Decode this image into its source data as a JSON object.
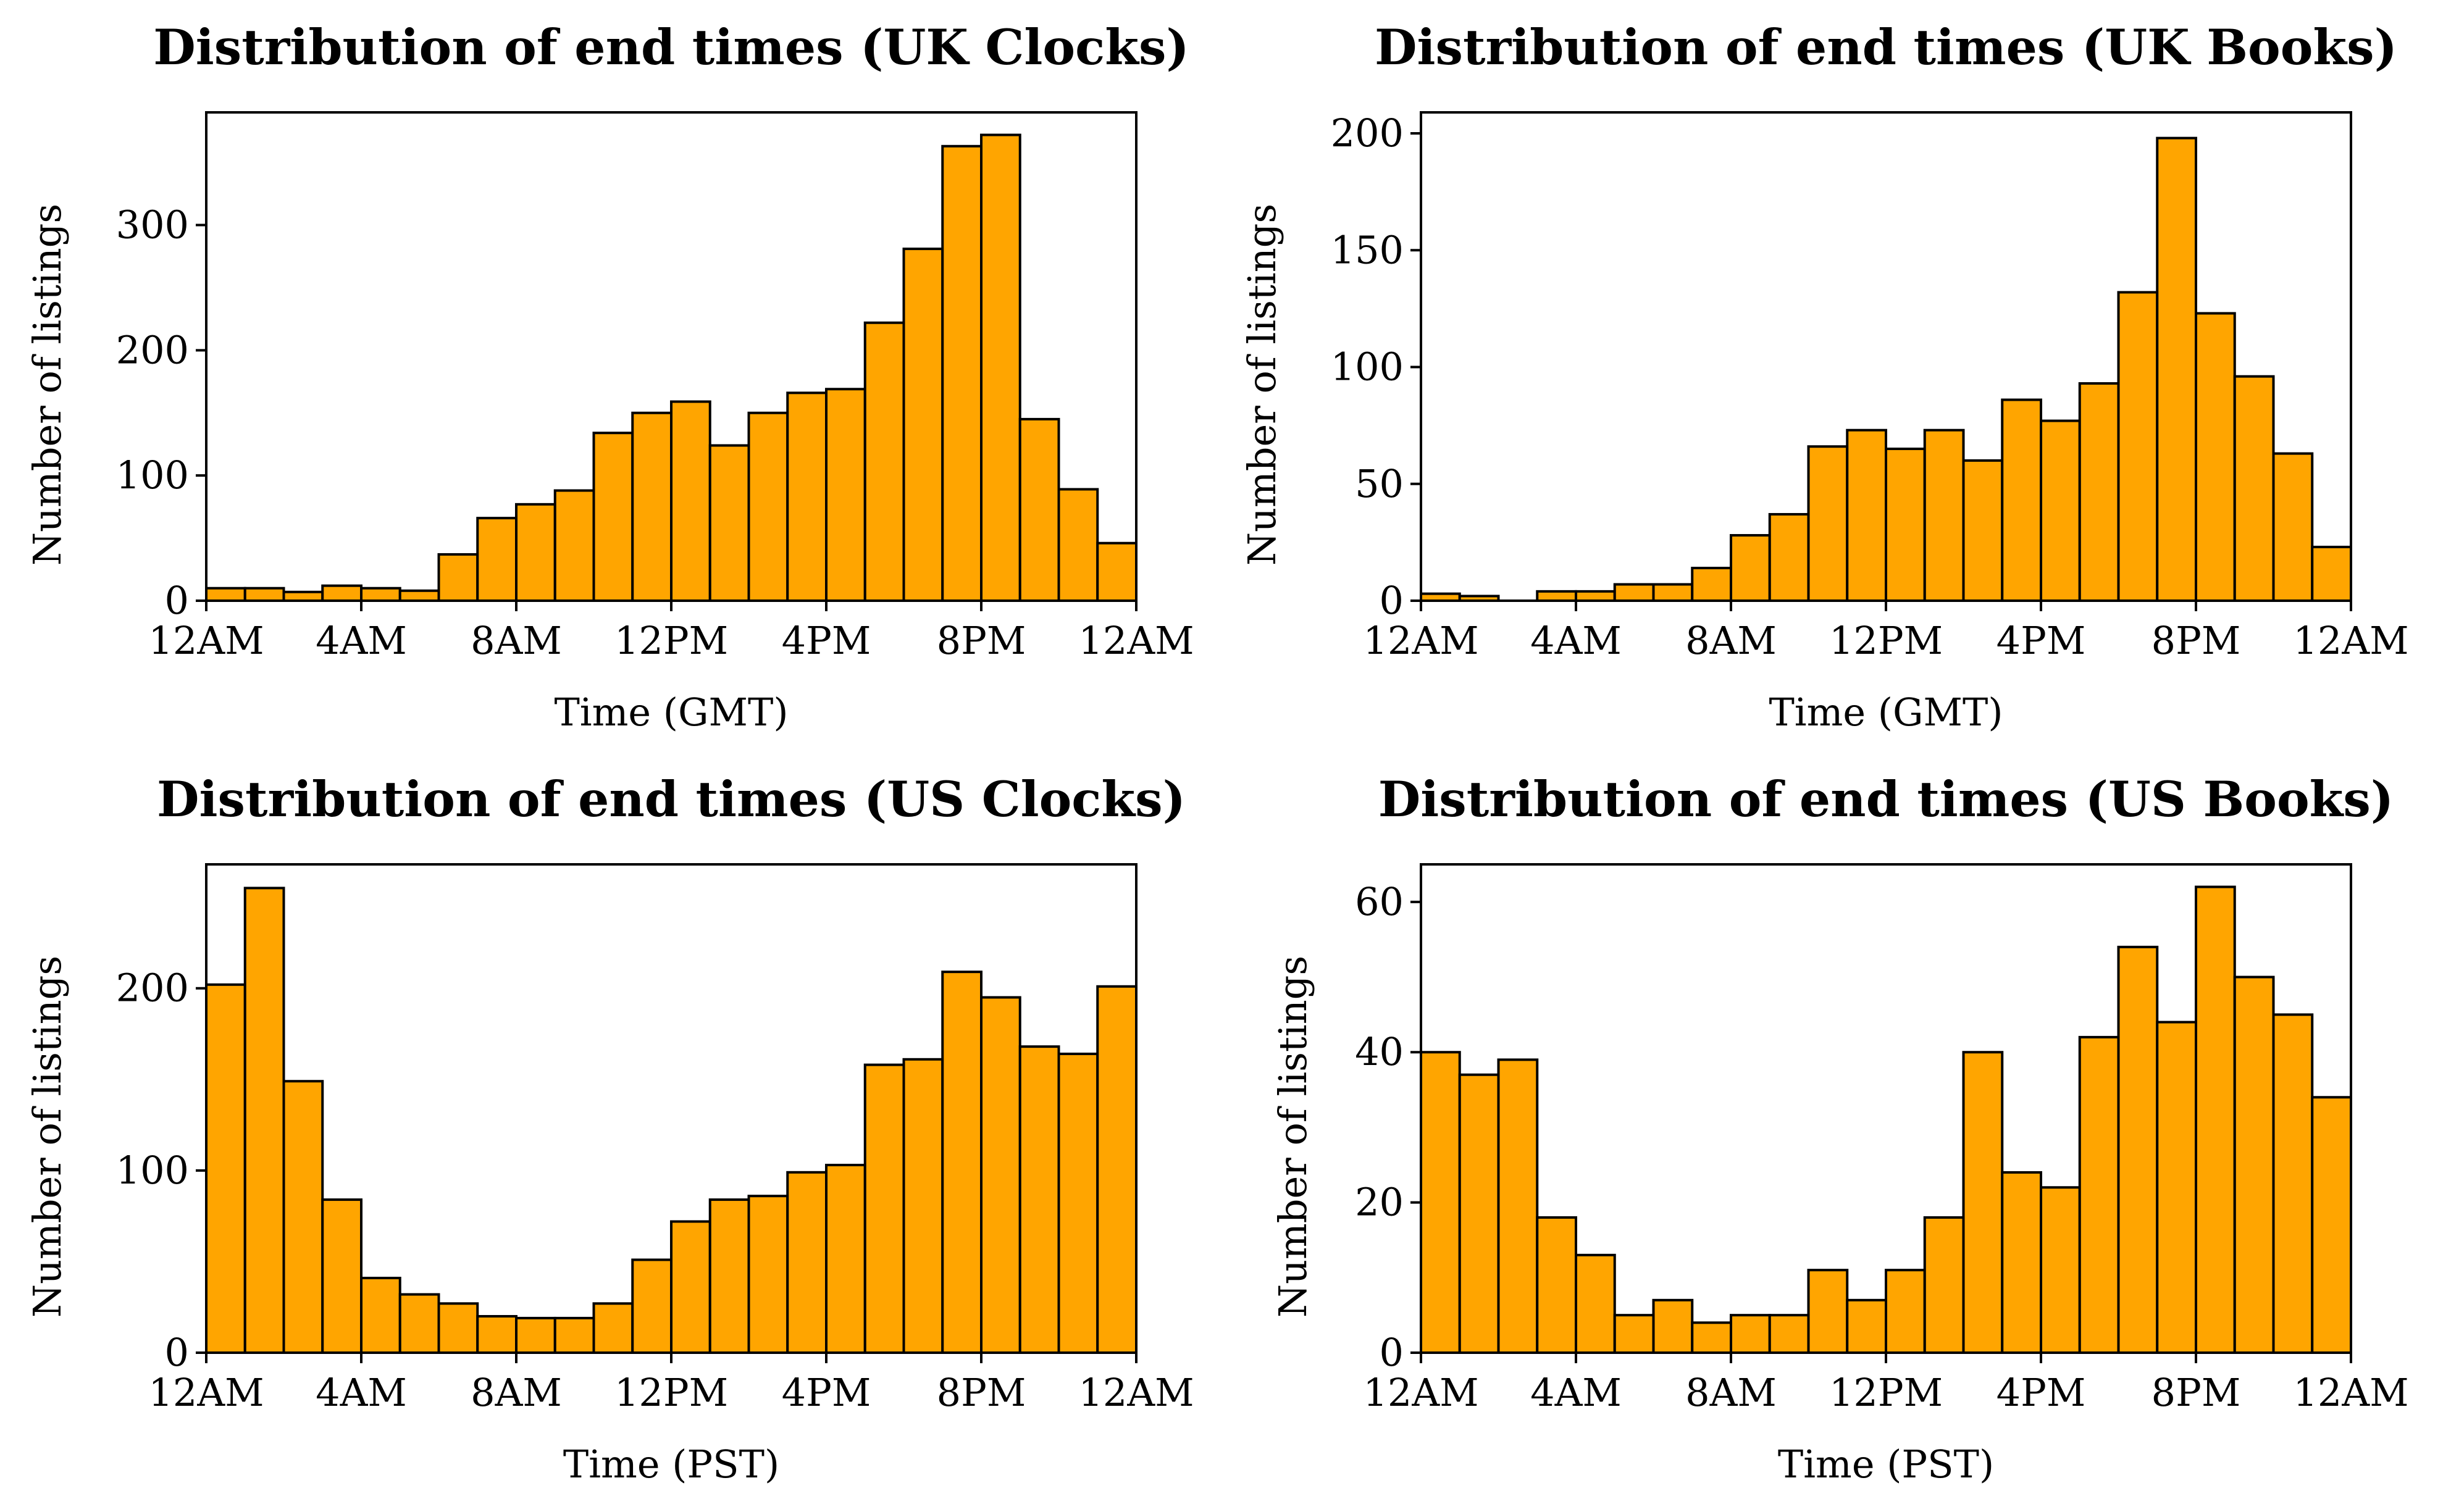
{
  "style": {
    "bar_color": "#FFA500",
    "edge_color": "#000000",
    "background": "#FFFFFF"
  },
  "chart_data": [
    {
      "type": "bar",
      "title": "Distribution of end times (UK Clocks)",
      "xlabel": "Time (GMT)",
      "ylabel": "Number of listings",
      "x_range": [
        0,
        24
      ],
      "x_ticks": [
        0,
        4,
        8,
        12,
        16,
        20,
        24
      ],
      "x_tick_labels": [
        "12AM",
        "4AM",
        "8AM",
        "12PM",
        "4PM",
        "8PM",
        "12AM"
      ],
      "ylim": [
        0,
        390
      ],
      "y_ticks": [
        0,
        100,
        200,
        300
      ],
      "grid": false,
      "legend": "none",
      "bin_width": 1,
      "values": [
        10,
        10,
        7,
        12,
        10,
        8,
        37,
        66,
        77,
        88,
        134,
        150,
        159,
        124,
        150,
        166,
        169,
        222,
        281,
        363,
        372,
        145,
        89,
        46
      ]
    },
    {
      "type": "bar",
      "title": "Distribution of end times (UK Books)",
      "xlabel": "Time (GMT)",
      "ylabel": "Number of listings",
      "x_range": [
        0,
        24
      ],
      "x_ticks": [
        0,
        4,
        8,
        12,
        16,
        20,
        24
      ],
      "x_tick_labels": [
        "12AM",
        "4AM",
        "8AM",
        "12PM",
        "4PM",
        "8PM",
        "12AM"
      ],
      "ylim": [
        0,
        209
      ],
      "y_ticks": [
        0,
        50,
        100,
        150,
        200
      ],
      "grid": false,
      "legend": "none",
      "bin_width": 1,
      "values": [
        3,
        2,
        0,
        4,
        4,
        7,
        7,
        14,
        28,
        37,
        66,
        73,
        65,
        73,
        60,
        86,
        77,
        93,
        132,
        198,
        123,
        96,
        63,
        23
      ]
    },
    {
      "type": "bar",
      "title": "Distribution of end times (US Clocks)",
      "xlabel": "Time (PST)",
      "ylabel": "Number of listings",
      "x_range": [
        0,
        24
      ],
      "x_ticks": [
        0,
        4,
        8,
        12,
        16,
        20,
        24
      ],
      "x_tick_labels": [
        "12AM",
        "4AM",
        "8AM",
        "12PM",
        "4PM",
        "8PM",
        "12AM"
      ],
      "ylim": [
        0,
        268
      ],
      "y_ticks": [
        0,
        100,
        200
      ],
      "grid": false,
      "legend": "none",
      "bin_width": 1,
      "values": [
        202,
        255,
        149,
        84,
        41,
        32,
        27,
        20,
        19,
        19,
        27,
        51,
        72,
        84,
        86,
        99,
        103,
        158,
        161,
        209,
        195,
        168,
        164,
        201
      ]
    },
    {
      "type": "bar",
      "title": "Distribution of end times (US Books)",
      "xlabel": "Time (PST)",
      "ylabel": "Number of listings",
      "x_range": [
        0,
        24
      ],
      "x_ticks": [
        0,
        4,
        8,
        12,
        16,
        20,
        24
      ],
      "x_tick_labels": [
        "12AM",
        "4AM",
        "8AM",
        "12PM",
        "4PM",
        "8PM",
        "12AM"
      ],
      "ylim": [
        0,
        65
      ],
      "y_ticks": [
        0,
        20,
        40,
        60
      ],
      "grid": false,
      "legend": "none",
      "bin_width": 1,
      "values": [
        40,
        37,
        39,
        18,
        13,
        5,
        7,
        4,
        5,
        5,
        11,
        7,
        11,
        18,
        40,
        24,
        22,
        42,
        54,
        44,
        62,
        50,
        45,
        34
      ]
    }
  ]
}
